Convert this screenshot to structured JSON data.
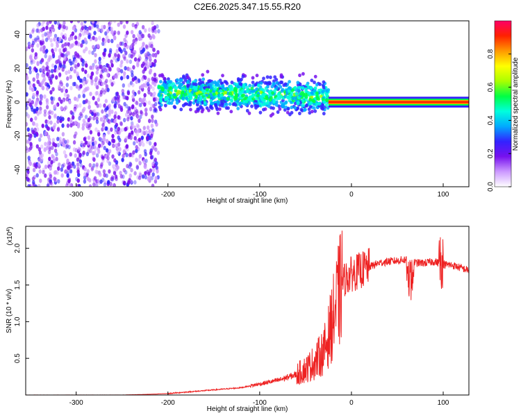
{
  "figure_title": "C2E6.2025.347.15.55.R20",
  "chart_data": [
    {
      "type": "heatmap",
      "name": "spectrogram",
      "xlabel": "Height of straight line (km)",
      "ylabel": "Frequency (Hz)",
      "xlim": [
        -355,
        128
      ],
      "ylim": [
        -50,
        48
      ],
      "xticks": [
        -300,
        -200,
        -100,
        0,
        100
      ],
      "yticks": [
        -40,
        -20,
        0,
        20,
        40
      ],
      "colorbar": {
        "label": "Normalized spectral amplitude",
        "range": [
          0.0,
          1.0
        ],
        "ticks": [
          0.0,
          0.2,
          0.4,
          0.6,
          0.8
        ],
        "colors": [
          "#ffffff",
          "#cc99ff",
          "#7711ee",
          "#3322ff",
          "#00aaff",
          "#00ffdd",
          "#00ff44",
          "#aaff00",
          "#ffff00",
          "#ff9900",
          "#ff2200",
          "#ff0066"
        ]
      },
      "regions": [
        {
          "description": "noise",
          "x_range": [
            -355,
            -210
          ],
          "freq_range": [
            -50,
            48
          ],
          "amplitude": 0.15
        },
        {
          "description": "signal band",
          "x_range": [
            -210,
            -25
          ],
          "freq_center_start": 6,
          "freq_center_end": 3,
          "freq_width": 14,
          "amplitude_peak": 0.4
        },
        {
          "description": "carrier line",
          "x_range": [
            -25,
            128
          ],
          "freq_center": 0,
          "freq_width": 2,
          "amplitude_peak": 0.95
        }
      ]
    },
    {
      "type": "line",
      "name": "snr",
      "xlabel": "Height of straight line (km)",
      "ylabel": "SNR (10 * v/v)",
      "y_multiplier": "(x10",
      "y_multiplier_exp": "4",
      "y_multiplier_close": ")",
      "xlim": [
        -355,
        128
      ],
      "ylim": [
        0,
        2.3
      ],
      "xticks": [
        -300,
        -200,
        -100,
        0,
        100
      ],
      "yticks": [
        0.5,
        1.0,
        1.5,
        2.0
      ],
      "series": [
        {
          "name": "SNR",
          "color": "#ee2222",
          "x": [
            -355,
            -300,
            -250,
            -220,
            -200,
            -180,
            -160,
            -140,
            -120,
            -100,
            -80,
            -60,
            -50,
            -40,
            -30,
            -25,
            -20,
            -15,
            -10,
            -5,
            0,
            10,
            20,
            30,
            40,
            50,
            55,
            60,
            65,
            70,
            80,
            90,
            95,
            100,
            110,
            120,
            128
          ],
          "values": [
            0.0,
            0.0,
            0.0,
            0.01,
            0.02,
            0.04,
            0.06,
            0.08,
            0.1,
            0.15,
            0.2,
            0.28,
            0.35,
            0.45,
            0.6,
            0.8,
            1.05,
            1.3,
            1.55,
            1.6,
            1.65,
            1.7,
            1.75,
            1.8,
            1.82,
            1.83,
            1.84,
            1.85,
            1.83,
            1.8,
            1.8,
            1.82,
            1.8,
            1.78,
            1.77,
            1.73,
            1.7
          ]
        }
      ]
    }
  ]
}
